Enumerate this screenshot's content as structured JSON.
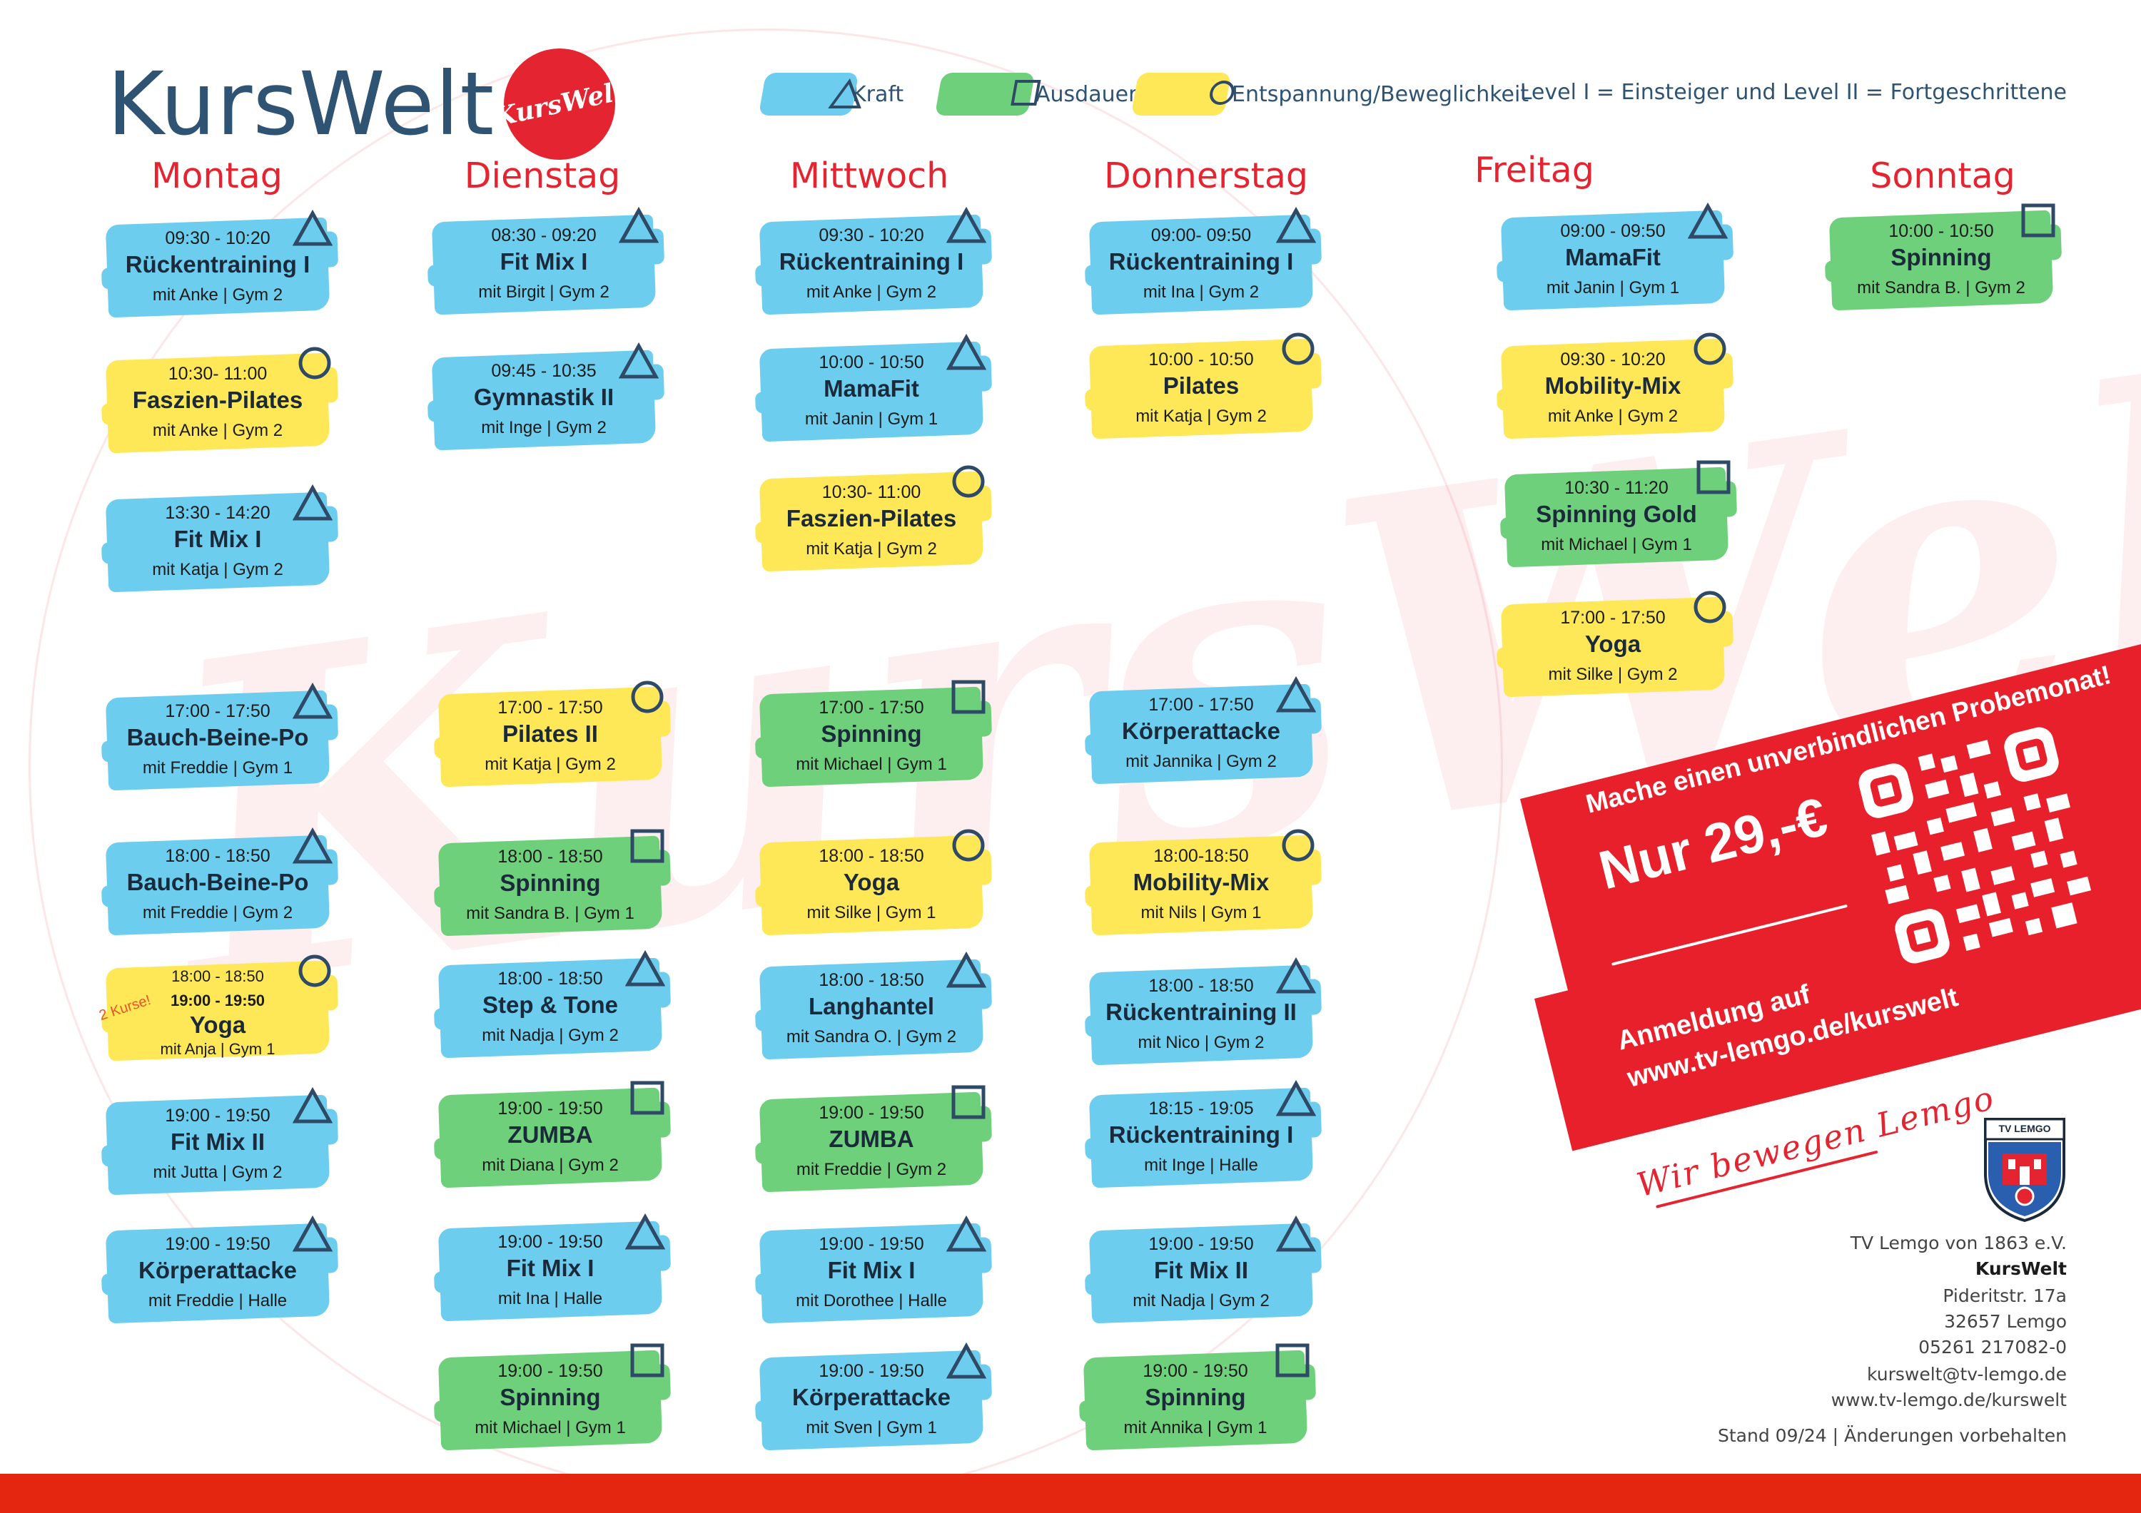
{
  "header": {
    "title": "KursWelt",
    "logo_text": "KursWelt",
    "legend": [
      {
        "label": "Kraft",
        "symbol": "triangle-icon",
        "color": "#6ccdee"
      },
      {
        "label": "Ausdauer",
        "symbol": "square-icon",
        "color": "#6fd07c"
      },
      {
        "label": "Entspannung/Beweglichkeit",
        "symbol": "circle-icon",
        "color": "#ffe857"
      }
    ],
    "level_note": "Level I = Einsteiger und Level II = Fortgeschrittene"
  },
  "days": [
    "Montag",
    "Dienstag",
    "Mittwoch",
    "Donnerstag",
    "Freitag",
    "Sonntag"
  ],
  "courses": {
    "montag": [
      {
        "time": "09:30 - 10:20",
        "name": "Rückentraining I",
        "trainer": "mit Anke | Gym 2",
        "category": "kraft"
      },
      {
        "time": "10:30- 11:00",
        "name": "Faszien-Pilates",
        "trainer": "mit Anke | Gym 2",
        "category": "entspannung"
      },
      {
        "time": "13:30 - 14:20",
        "name": "Fit Mix I",
        "trainer": "mit Katja | Gym 2",
        "category": "kraft"
      },
      {
        "time": "17:00 - 17:50",
        "name": "Bauch-Beine-Po",
        "trainer": "mit Freddie | Gym 1",
        "category": "kraft"
      },
      {
        "time": "18:00 - 18:50",
        "name": "Bauch-Beine-Po",
        "trainer": "mit Freddie | Gym 2",
        "category": "kraft"
      },
      {
        "time": "18:00 - 18:50",
        "time2": "19:00 - 19:50",
        "badge": "2 Kurse!",
        "name": "Yoga",
        "trainer": "mit Anja | Gym 1",
        "category": "entspannung"
      },
      {
        "time": "19:00 - 19:50",
        "name": "Fit Mix II",
        "trainer": "mit Jutta | Gym 2",
        "category": "kraft"
      },
      {
        "time": "19:00 - 19:50",
        "name": "Körperattacke",
        "trainer": "mit Freddie | Halle",
        "category": "kraft"
      }
    ],
    "dienstag": [
      {
        "time": "08:30 - 09:20",
        "name": "Fit Mix I",
        "trainer": "mit Birgit | Gym 2",
        "category": "kraft"
      },
      {
        "time": "09:45 - 10:35",
        "name": "Gymnastik II",
        "trainer": "mit Inge | Gym 2",
        "category": "kraft"
      },
      {
        "time": "17:00 - 17:50",
        "name": "Pilates II",
        "trainer": "mit Katja | Gym 2",
        "category": "entspannung"
      },
      {
        "time": "18:00 - 18:50",
        "name": "Spinning",
        "trainer": "mit Sandra B. | Gym 1",
        "category": "ausdauer"
      },
      {
        "time": "18:00 - 18:50",
        "name": "Step & Tone",
        "trainer": "mit Nadja | Gym 2",
        "category": "kraft"
      },
      {
        "time": "19:00 - 19:50",
        "name": "ZUMBA",
        "trainer": "mit Diana | Gym 2",
        "category": "ausdauer"
      },
      {
        "time": "19:00 - 19:50",
        "name": "Fit Mix I",
        "trainer": "mit Ina | Halle",
        "category": "kraft"
      },
      {
        "time": "19:00 - 19:50",
        "name": "Spinning",
        "trainer": "mit Michael | Gym 1",
        "category": "ausdauer"
      }
    ],
    "mittwoch": [
      {
        "time": "09:30 - 10:20",
        "name": "Rückentraining I",
        "trainer": "mit Anke | Gym 2",
        "category": "kraft"
      },
      {
        "time": "10:00 - 10:50",
        "name": "MamaFit",
        "trainer": "mit Janin | Gym 1",
        "category": "kraft"
      },
      {
        "time": "10:30- 11:00",
        "name": "Faszien-Pilates",
        "trainer": "mit Katja | Gym 2",
        "category": "entspannung"
      },
      {
        "time": "17:00 - 17:50",
        "name": "Spinning",
        "trainer": "mit Michael | Gym 1",
        "category": "ausdauer"
      },
      {
        "time": "18:00 - 18:50",
        "name": "Yoga",
        "trainer": "mit Silke | Gym 1",
        "category": "entspannung"
      },
      {
        "time": "18:00 - 18:50",
        "name": "Langhantel",
        "trainer": "mit Sandra O. | Gym 2",
        "category": "kraft"
      },
      {
        "time": "19:00 - 19:50",
        "name": "ZUMBA",
        "trainer": "mit Freddie | Gym 2",
        "category": "ausdauer"
      },
      {
        "time": "19:00 - 19:50",
        "name": "Fit Mix I",
        "trainer": "mit Dorothee | Halle",
        "category": "kraft"
      },
      {
        "time": "19:00 - 19:50",
        "name": "Körperattacke",
        "trainer": "mit Sven | Gym 1",
        "category": "kraft"
      }
    ],
    "donnerstag": [
      {
        "time": "09:00- 09:50",
        "name": "Rückentraining I",
        "trainer": "mit Ina | Gym 2",
        "category": "kraft"
      },
      {
        "time": "10:00 - 10:50",
        "name": "Pilates",
        "trainer": "mit Katja | Gym 2",
        "category": "entspannung"
      },
      {
        "time": "17:00 - 17:50",
        "name": "Körperattacke",
        "trainer": "mit Jannika | Gym 2",
        "category": "kraft"
      },
      {
        "time": "18:00-18:50",
        "name": "Mobility-Mix",
        "trainer": "mit Nils | Gym 1",
        "category": "entspannung"
      },
      {
        "time": "18:00 - 18:50",
        "name": "Rückentraining II",
        "trainer": "mit Nico | Gym 2",
        "category": "kraft"
      },
      {
        "time": "18:15 - 19:05",
        "name": "Rückentraining I",
        "trainer": "mit Inge | Halle",
        "category": "kraft"
      },
      {
        "time": "19:00 - 19:50",
        "name": "Fit Mix II",
        "trainer": "mit Nadja | Gym 2",
        "category": "kraft"
      },
      {
        "time": "19:00 - 19:50",
        "name": "Spinning",
        "trainer": "mit Annika | Gym 1",
        "category": "ausdauer"
      }
    ],
    "freitag": [
      {
        "time": "09:00 - 09:50",
        "name": "MamaFit",
        "trainer": "mit Janin | Gym 1",
        "category": "kraft"
      },
      {
        "time": "09:30 - 10:20",
        "name": "Mobility-Mix",
        "trainer": "mit Anke | Gym 2",
        "category": "entspannung"
      },
      {
        "time": "10:30 - 11:20",
        "name": "Spinning Gold",
        "trainer": "mit Michael | Gym 1",
        "category": "ausdauer"
      },
      {
        "time": "17:00 - 17:50",
        "name": "Yoga",
        "trainer": "mit Silke | Gym 2",
        "category": "entspannung"
      }
    ],
    "sonntag": [
      {
        "time": "10:00 - 10:50",
        "name": "Spinning",
        "trainer": "mit Sandra B. | Gym 2",
        "category": "ausdauer"
      }
    ]
  },
  "category_colors": {
    "kraft": "#6ccdee",
    "ausdauer": "#6fd07c",
    "entspannung": "#ffe857"
  },
  "promo": {
    "headline": "Mache einen unverbindlichen Probemonat!",
    "price": "Nur 29,-€",
    "register_line1": "Anmeldung auf",
    "register_line2": "www.tv-lemgo.de/kurswelt",
    "qr_icon": "qr-code-icon"
  },
  "slogan": "Wir bewegen Lemgo",
  "crest_label": "TV LEMGO",
  "contact": {
    "org": "TV Lemgo von 1863 e.V.",
    "name": "KursWelt",
    "street": "Pideritstr. 17a",
    "city": "32657 Lemgo",
    "phone": "05261 217082-0",
    "email": "kurswelt@tv-lemgo.de",
    "web": "www.tv-lemgo.de/kurswelt",
    "stand": "Stand 09/24 | Änderungen vorbehalten"
  }
}
